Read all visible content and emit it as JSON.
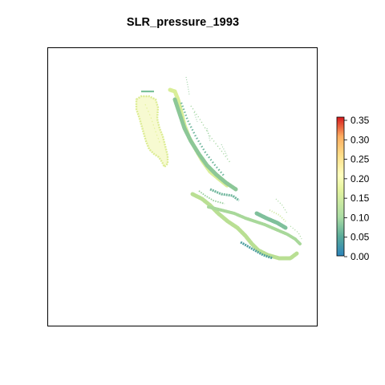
{
  "plot": {
    "title": "SLR_pressure_1993"
  },
  "legend": {
    "ticks": [
      "0.35",
      "0.30",
      "0.25",
      "0.20",
      "0.15",
      "0.10",
      "0.05",
      "0.00"
    ],
    "min": 0.0,
    "max": 0.36,
    "palette": [
      "#2b83ba",
      "#abdda4",
      "#ffffbf",
      "#fdae61",
      "#d7191c"
    ]
  },
  "colors": {
    "cyan_green": "#5aac9a",
    "mid_green": "#8ccb95",
    "light_green": "#b8e08e",
    "yellow_green": "#dcef9a",
    "pale_yellow": "#eef5a3",
    "frame": "#000000"
  }
}
